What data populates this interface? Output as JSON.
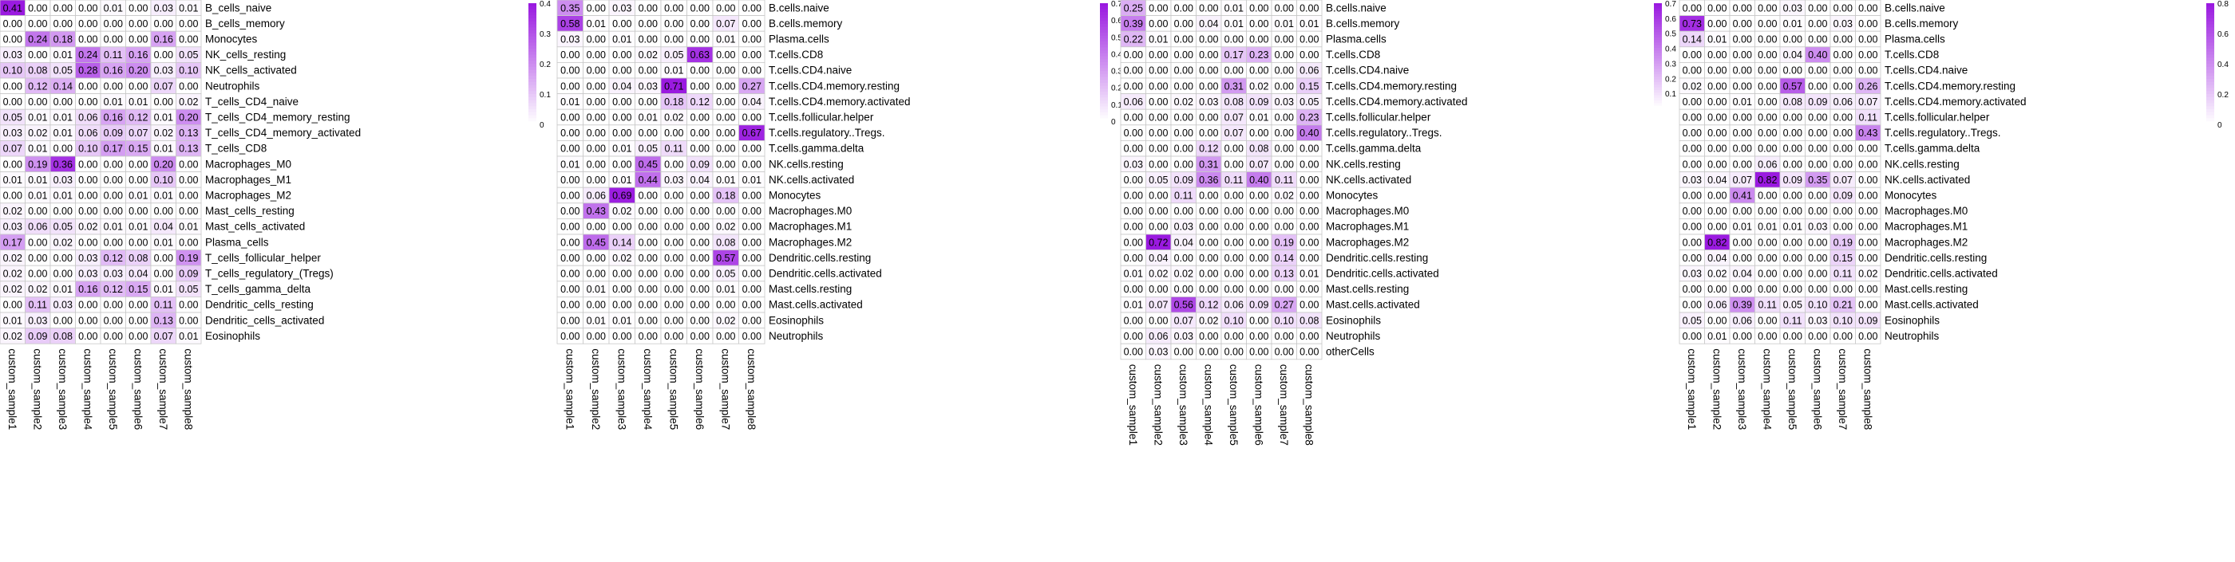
{
  "colors": {
    "low": "#ffffff",
    "high": "#9a1ae0",
    "grid": "#c8c8c8",
    "text": "#000000"
  },
  "samples": [
    "custom_sample1",
    "custom_sample2",
    "custom_sample3",
    "custom_sample4",
    "custom_sample5",
    "custom_sample6",
    "custom_sample7",
    "custom_sample8"
  ],
  "chart_data": [
    {
      "type": "heatmap",
      "panel": "panel-1",
      "x": [
        "custom_sample1",
        "custom_sample2",
        "custom_sample3",
        "custom_sample4",
        "custom_sample5",
        "custom_sample6",
        "custom_sample7",
        "custom_sample8"
      ],
      "y": [
        "B_cells_naive",
        "B_cells_memory",
        "Monocytes",
        "NK_cells_resting",
        "NK_cells_activated",
        "Neutrophils",
        "T_cells_CD4_naive",
        "T_cells_CD4_memory_resting",
        "T_cells_CD4_memory_activated",
        "T_cells_CD8",
        "Macrophages_M0",
        "Macrophages_M1",
        "Macrophages_M2",
        "Mast_cells_resting",
        "Mast_cells_activated",
        "Plasma_cells",
        "T_cells_follicular_helper",
        "T_cells_regulatory_(Tregs)",
        "T_cells_gamma_delta",
        "Dendritic_cells_resting",
        "Dendritic_cells_activated",
        "Eosinophils"
      ],
      "values": [
        [
          0.41,
          0.0,
          0.0,
          0.0,
          0.01,
          0.0,
          0.03,
          0.01
        ],
        [
          0.0,
          0.0,
          0.0,
          0.0,
          0.0,
          0.0,
          0.0,
          0.0
        ],
        [
          0.0,
          0.24,
          0.18,
          0.0,
          0.0,
          0.0,
          0.16,
          0.0
        ],
        [
          0.03,
          0.0,
          0.01,
          0.24,
          0.11,
          0.16,
          0.0,
          0.05
        ],
        [
          0.1,
          0.08,
          0.05,
          0.28,
          0.16,
          0.2,
          0.03,
          0.1
        ],
        [
          0.0,
          0.12,
          0.14,
          0.0,
          0.0,
          0.0,
          0.07,
          0.0
        ],
        [
          0.0,
          0.0,
          0.0,
          0.0,
          0.01,
          0.01,
          0.0,
          0.02
        ],
        [
          0.05,
          0.01,
          0.01,
          0.06,
          0.16,
          0.12,
          0.01,
          0.2
        ],
        [
          0.03,
          0.02,
          0.01,
          0.06,
          0.09,
          0.07,
          0.02,
          0.13
        ],
        [
          0.07,
          0.01,
          0.0,
          0.1,
          0.17,
          0.15,
          0.01,
          0.13
        ],
        [
          0.0,
          0.19,
          0.36,
          0.0,
          0.0,
          0.0,
          0.2,
          0.0
        ],
        [
          0.01,
          0.01,
          0.03,
          0.0,
          0.0,
          0.0,
          0.1,
          0.0
        ],
        [
          0.0,
          0.01,
          0.01,
          0.0,
          0.0,
          0.01,
          0.01,
          0.0
        ],
        [
          0.02,
          0.0,
          0.0,
          0.0,
          0.0,
          0.0,
          0.0,
          0.0
        ],
        [
          0.03,
          0.06,
          0.05,
          0.02,
          0.01,
          0.01,
          0.04,
          0.01
        ],
        [
          0.17,
          0.0,
          0.02,
          0.0,
          0.0,
          0.0,
          0.01,
          0.0
        ],
        [
          0.02,
          0.0,
          0.0,
          0.03,
          0.12,
          0.08,
          0.0,
          0.19
        ],
        [
          0.02,
          0.0,
          0.0,
          0.03,
          0.03,
          0.04,
          0.0,
          0.09
        ],
        [
          0.02,
          0.02,
          0.01,
          0.16,
          0.12,
          0.15,
          0.01,
          0.05
        ],
        [
          0.0,
          0.11,
          0.03,
          0.0,
          0.0,
          0.0,
          0.11,
          0.0
        ],
        [
          0.01,
          0.03,
          0.0,
          0.0,
          0.0,
          0.0,
          0.13,
          0.0
        ],
        [
          0.02,
          0.09,
          0.08,
          0.0,
          0.0,
          0.0,
          0.07,
          0.01
        ]
      ],
      "colorbar": {
        "max": 0.4,
        "ticks": [
          "0.4",
          "0.3",
          "0.2",
          "0.1",
          "0"
        ]
      },
      "grid": true
    },
    {
      "type": "heatmap",
      "panel": "panel-2",
      "x": [
        "custom_sample1",
        "custom_sample2",
        "custom_sample3",
        "custom_sample4",
        "custom_sample5",
        "custom_sample6",
        "custom_sample7",
        "custom_sample8"
      ],
      "y": [
        "B.cells.naive",
        "B.cells.memory",
        "Plasma.cells",
        "T.cells.CD8",
        "T.cells.CD4.naive",
        "T.cells.CD4.memory.resting",
        "T.cells.CD4.memory.activated",
        "T.cells.follicular.helper",
        "T.cells.regulatory..Tregs.",
        "T.cells.gamma.delta",
        "NK.cells.resting",
        "NK.cells.activated",
        "Monocytes",
        "Macrophages.M0",
        "Macrophages.M1",
        "Macrophages.M2",
        "Dendritic.cells.resting",
        "Dendritic.cells.activated",
        "Mast.cells.resting",
        "Mast.cells.activated",
        "Eosinophils",
        "Neutrophils"
      ],
      "values": [
        [
          0.35,
          0.0,
          0.03,
          0.0,
          0.0,
          0.0,
          0.0,
          0.0
        ],
        [
          0.58,
          0.01,
          0.0,
          0.0,
          0.0,
          0.0,
          0.07,
          0.0
        ],
        [
          0.03,
          0.0,
          0.01,
          0.0,
          0.0,
          0.0,
          0.01,
          0.0
        ],
        [
          0.0,
          0.0,
          0.0,
          0.02,
          0.05,
          0.63,
          0.0,
          0.0
        ],
        [
          0.0,
          0.0,
          0.0,
          0.0,
          0.01,
          0.0,
          0.0,
          0.0
        ],
        [
          0.0,
          0.0,
          0.04,
          0.03,
          0.71,
          0.0,
          0.0,
          0.27
        ],
        [
          0.01,
          0.0,
          0.0,
          0.0,
          0.18,
          0.12,
          0.0,
          0.04
        ],
        [
          0.0,
          0.0,
          0.0,
          0.01,
          0.02,
          0.0,
          0.0,
          0.0
        ],
        [
          0.0,
          0.0,
          0.0,
          0.0,
          0.0,
          0.0,
          0.0,
          0.67
        ],
        [
          0.0,
          0.0,
          0.01,
          0.05,
          0.11,
          0.0,
          0.0,
          0.0
        ],
        [
          0.01,
          0.0,
          0.0,
          0.45,
          0.0,
          0.09,
          0.0,
          0.0
        ],
        [
          0.0,
          0.0,
          0.01,
          0.44,
          0.03,
          0.04,
          0.01,
          0.01
        ],
        [
          0.0,
          0.06,
          0.69,
          0.0,
          0.0,
          0.0,
          0.18,
          0.0
        ],
        [
          0.0,
          0.43,
          0.02,
          0.0,
          0.0,
          0.0,
          0.0,
          0.0
        ],
        [
          0.0,
          0.0,
          0.0,
          0.0,
          0.0,
          0.0,
          0.02,
          0.0
        ],
        [
          0.0,
          0.45,
          0.14,
          0.0,
          0.0,
          0.0,
          0.08,
          0.0
        ],
        [
          0.0,
          0.0,
          0.02,
          0.0,
          0.0,
          0.0,
          0.57,
          0.0
        ],
        [
          0.0,
          0.0,
          0.0,
          0.0,
          0.0,
          0.0,
          0.05,
          0.0
        ],
        [
          0.0,
          0.01,
          0.0,
          0.0,
          0.0,
          0.0,
          0.01,
          0.0
        ],
        [
          0.0,
          0.0,
          0.0,
          0.0,
          0.0,
          0.0,
          0.0,
          0.0
        ],
        [
          0.0,
          0.01,
          0.01,
          0.0,
          0.0,
          0.0,
          0.02,
          0.0
        ],
        [
          0.0,
          0.0,
          0.0,
          0.0,
          0.0,
          0.0,
          0.0,
          0.0
        ]
      ],
      "colorbar": {
        "max": 0.7,
        "ticks": [
          "0.7",
          "0.6",
          "0.5",
          "0.4",
          "0.3",
          "0.2",
          "0.1",
          "0"
        ]
      },
      "grid": true
    },
    {
      "type": "heatmap",
      "panel": "panel-3",
      "x": [
        "custom_sample1",
        "custom_sample2",
        "custom_sample3",
        "custom_sample4",
        "custom_sample5",
        "custom_sample6",
        "custom_sample7",
        "custom_sample8"
      ],
      "y": [
        "B.cells.naive",
        "B.cells.memory",
        "Plasma.cells",
        "T.cells.CD8",
        "T.cells.CD4.naive",
        "T.cells.CD4.memory.resting",
        "T.cells.CD4.memory.activated",
        "T.cells.follicular.helper",
        "T.cells.regulatory..Tregs.",
        "T.cells.gamma.delta",
        "NK.cells.resting",
        "NK.cells.activated",
        "Monocytes",
        "Macrophages.M0",
        "Macrophages.M1",
        "Macrophages.M2",
        "Dendritic.cells.resting",
        "Dendritic.cells.activated",
        "Mast.cells.resting",
        "Mast.cells.activated",
        "Eosinophils",
        "Neutrophils",
        "otherCells"
      ],
      "values": [
        [
          0.25,
          0.0,
          0.0,
          0.0,
          0.01,
          0.0,
          0.0,
          0.0
        ],
        [
          0.39,
          0.0,
          0.0,
          0.04,
          0.01,
          0.0,
          0.01,
          0.01
        ],
        [
          0.22,
          0.01,
          0.0,
          0.0,
          0.0,
          0.0,
          0.0,
          0.0
        ],
        [
          0.0,
          0.0,
          0.0,
          0.0,
          0.17,
          0.23,
          0.0,
          0.0
        ],
        [
          0.0,
          0.0,
          0.0,
          0.0,
          0.0,
          0.0,
          0.0,
          0.06
        ],
        [
          0.0,
          0.0,
          0.0,
          0.0,
          0.31,
          0.02,
          0.0,
          0.15
        ],
        [
          0.06,
          0.0,
          0.02,
          0.03,
          0.08,
          0.09,
          0.03,
          0.05
        ],
        [
          0.0,
          0.0,
          0.0,
          0.0,
          0.07,
          0.01,
          0.0,
          0.23
        ],
        [
          0.0,
          0.0,
          0.0,
          0.0,
          0.07,
          0.0,
          0.0,
          0.4
        ],
        [
          0.0,
          0.0,
          0.0,
          0.12,
          0.0,
          0.08,
          0.0,
          0.0
        ],
        [
          0.03,
          0.0,
          0.0,
          0.31,
          0.0,
          0.07,
          0.0,
          0.0
        ],
        [
          0.0,
          0.05,
          0.09,
          0.36,
          0.11,
          0.4,
          0.11,
          0.0
        ],
        [
          0.0,
          0.0,
          0.11,
          0.0,
          0.0,
          0.0,
          0.02,
          0.0
        ],
        [
          0.0,
          0.0,
          0.0,
          0.0,
          0.0,
          0.0,
          0.0,
          0.0
        ],
        [
          0.0,
          0.0,
          0.03,
          0.0,
          0.0,
          0.0,
          0.0,
          0.0
        ],
        [
          0.0,
          0.72,
          0.04,
          0.0,
          0.0,
          0.0,
          0.19,
          0.0
        ],
        [
          0.0,
          0.04,
          0.0,
          0.0,
          0.0,
          0.0,
          0.14,
          0.0
        ],
        [
          0.01,
          0.02,
          0.02,
          0.0,
          0.0,
          0.0,
          0.13,
          0.01
        ],
        [
          0.0,
          0.0,
          0.0,
          0.0,
          0.0,
          0.0,
          0.0,
          0.0
        ],
        [
          0.01,
          0.07,
          0.56,
          0.12,
          0.06,
          0.09,
          0.27,
          0.0
        ],
        [
          0.0,
          0.0,
          0.07,
          0.02,
          0.1,
          0.0,
          0.1,
          0.08
        ],
        [
          0.0,
          0.06,
          0.03,
          0.0,
          0.0,
          0.0,
          0.0,
          0.0
        ],
        [
          0.0,
          0.03,
          0.0,
          0.0,
          0.0,
          0.0,
          0.0,
          0.0
        ]
      ],
      "colorbar": {
        "max": 0.7,
        "ticks": [
          "0.7",
          "0.6",
          "0.5",
          "0.4",
          "0.3",
          "0.2",
          "0.1"
        ]
      },
      "grid": true
    },
    {
      "type": "heatmap",
      "panel": "panel-4",
      "x": [
        "custom_sample1",
        "custom_sample2",
        "custom_sample3",
        "custom_sample4",
        "custom_sample5",
        "custom_sample6",
        "custom_sample7",
        "custom_sample8"
      ],
      "y": [
        "B.cells.naive",
        "B.cells.memory",
        "Plasma.cells",
        "T.cells.CD8",
        "T.cells.CD4.naive",
        "T.cells.CD4.memory.resting",
        "T.cells.CD4.memory.activated",
        "T.cells.follicular.helper",
        "T.cells.regulatory..Tregs.",
        "T.cells.gamma.delta",
        "NK.cells.resting",
        "NK.cells.activated",
        "Monocytes",
        "Macrophages.M0",
        "Macrophages.M1",
        "Macrophages.M2",
        "Dendritic.cells.resting",
        "Dendritic.cells.activated",
        "Mast.cells.resting",
        "Mast.cells.activated",
        "Eosinophils",
        "Neutrophils"
      ],
      "values": [
        [
          0.0,
          0.0,
          0.0,
          0.0,
          0.03,
          0.0,
          0.0,
          0.0
        ],
        [
          0.73,
          0.0,
          0.0,
          0.0,
          0.01,
          0.0,
          0.03,
          0.0
        ],
        [
          0.14,
          0.01,
          0.0,
          0.0,
          0.0,
          0.0,
          0.0,
          0.0
        ],
        [
          0.0,
          0.0,
          0.0,
          0.0,
          0.04,
          0.4,
          0.0,
          0.0
        ],
        [
          0.0,
          0.0,
          0.0,
          0.0,
          0.0,
          0.0,
          0.0,
          0.0
        ],
        [
          0.02,
          0.0,
          0.0,
          0.0,
          0.57,
          0.0,
          0.0,
          0.26
        ],
        [
          0.0,
          0.0,
          0.01,
          0.0,
          0.08,
          0.09,
          0.06,
          0.07
        ],
        [
          0.0,
          0.0,
          0.0,
          0.0,
          0.0,
          0.0,
          0.0,
          0.11
        ],
        [
          0.0,
          0.0,
          0.0,
          0.0,
          0.0,
          0.0,
          0.0,
          0.43
        ],
        [
          0.0,
          0.0,
          0.0,
          0.0,
          0.0,
          0.0,
          0.0,
          0.0
        ],
        [
          0.0,
          0.0,
          0.0,
          0.06,
          0.0,
          0.0,
          0.0,
          0.0
        ],
        [
          0.03,
          0.04,
          0.07,
          0.82,
          0.09,
          0.35,
          0.07,
          0.0
        ],
        [
          0.0,
          0.0,
          0.41,
          0.0,
          0.0,
          0.0,
          0.09,
          0.0
        ],
        [
          0.0,
          0.0,
          0.0,
          0.0,
          0.0,
          0.0,
          0.0,
          0.0
        ],
        [
          0.0,
          0.0,
          0.01,
          0.01,
          0.01,
          0.03,
          0.0,
          0.0
        ],
        [
          0.0,
          0.82,
          0.0,
          0.0,
          0.0,
          0.0,
          0.19,
          0.0
        ],
        [
          0.0,
          0.04,
          0.0,
          0.0,
          0.0,
          0.0,
          0.15,
          0.0
        ],
        [
          0.03,
          0.02,
          0.04,
          0.0,
          0.0,
          0.0,
          0.11,
          0.02
        ],
        [
          0.0,
          0.0,
          0.0,
          0.0,
          0.0,
          0.0,
          0.0,
          0.0
        ],
        [
          0.0,
          0.06,
          0.39,
          0.11,
          0.05,
          0.1,
          0.21,
          0.0
        ],
        [
          0.05,
          0.0,
          0.06,
          0.0,
          0.11,
          0.03,
          0.1,
          0.09
        ],
        [
          0.0,
          0.01,
          0.0,
          0.0,
          0.0,
          0.0,
          0.0,
          0.0
        ]
      ],
      "colorbar": {
        "max": 0.8,
        "ticks": [
          "0.8",
          "0.6",
          "0.4",
          "0.2",
          "0"
        ]
      },
      "grid": true
    }
  ]
}
